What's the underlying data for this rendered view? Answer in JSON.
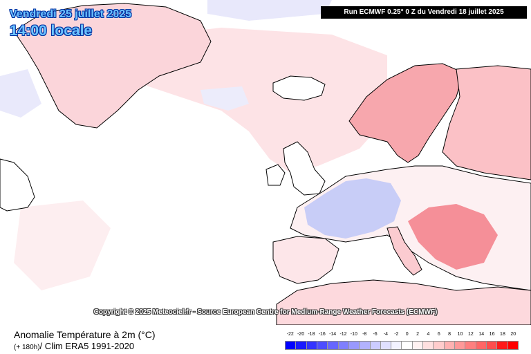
{
  "header": {
    "date": "Vendredi 25 juillet 2025",
    "time": "14:00 locale",
    "run": "Run ECMWF 0.25° 0 Z du Vendredi 18 juillet 2025"
  },
  "copyright": "Copyright © 2025 Meteociel.fr - Source European Centre for Medium-Range Weather Forecasts (ECMWF)",
  "footer": {
    "title": "Anomalie Température à 2m (°C)",
    "sub_small": "(+ 180h)",
    "sub_rest": "/ Clim ERA5 1991-2020"
  },
  "legend": {
    "labels": [
      "-22",
      "-20",
      "-18",
      "-16",
      "-14",
      "-12",
      "-10",
      "-8",
      "-6",
      "-4",
      "-2",
      "0",
      "2",
      "4",
      "6",
      "8",
      "10",
      "12",
      "14",
      "16",
      "18",
      "20"
    ],
    "colors": [
      "#0000ff",
      "#1a1aff",
      "#3333ff",
      "#4d4dff",
      "#6666ff",
      "#7f7fff",
      "#9999ff",
      "#b2b2ff",
      "#ccccff",
      "#e0e0ff",
      "#f2f2ff",
      "#ffffff",
      "#fff2f2",
      "#ffe0e0",
      "#ffcccc",
      "#ffb2b2",
      "#ff9999",
      "#ff7f7f",
      "#ff6666",
      "#ff4d4d",
      "#ff1a1a",
      "#ff0000"
    ]
  },
  "colors": {
    "land_outline": "#000000",
    "title_text": "#6cc3ff",
    "title_outline": "#0030a0"
  }
}
